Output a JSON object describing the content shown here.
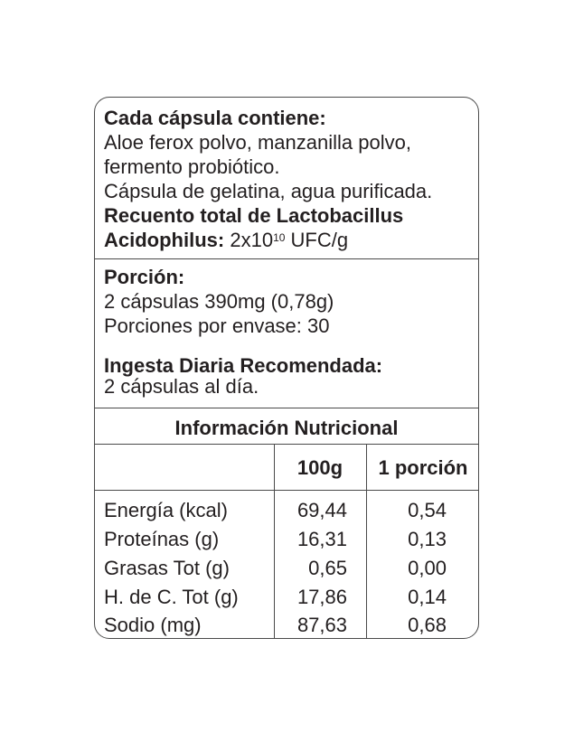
{
  "ingredients": {
    "heading": "Cada cápsula contiene:",
    "line1": "Aloe ferox polvo, manzanilla polvo,",
    "line2": "fermento probiótico.",
    "line3": "Cápsula de gelatina, agua purificada.",
    "count_heading": "Recuento total de Lactobacillus",
    "count_label": "Acidophilus:",
    "count_value_base": "2x10",
    "count_value_exp": "10",
    "count_value_unit": "UFC/g"
  },
  "serving": {
    "heading": "Porción:",
    "size": "2 cápsulas 390mg (0,78g)",
    "per_container": "Porciones por envase: 30"
  },
  "intake": {
    "heading": "Ingesta Diaria Recomendada:",
    "value": "2 cápsulas al día."
  },
  "nutrition": {
    "title": "Información Nutricional",
    "columns": [
      "",
      "100g",
      "1 porción"
    ],
    "rows": [
      {
        "name": "Energía (kcal)",
        "per100": "69,44",
        "perServing": "0,54"
      },
      {
        "name": "Proteínas (g)",
        "per100": "16,31",
        "perServing": "0,13"
      },
      {
        "name": "Grasas Tot (g)",
        "per100": "0,65",
        "perServing": "0,00"
      },
      {
        "name": "H. de C. Tot (g)",
        "per100": "17,86",
        "perServing": "0,14"
      },
      {
        "name": "Sodio (mg)",
        "per100": "87,63",
        "perServing": "0,68"
      }
    ]
  }
}
